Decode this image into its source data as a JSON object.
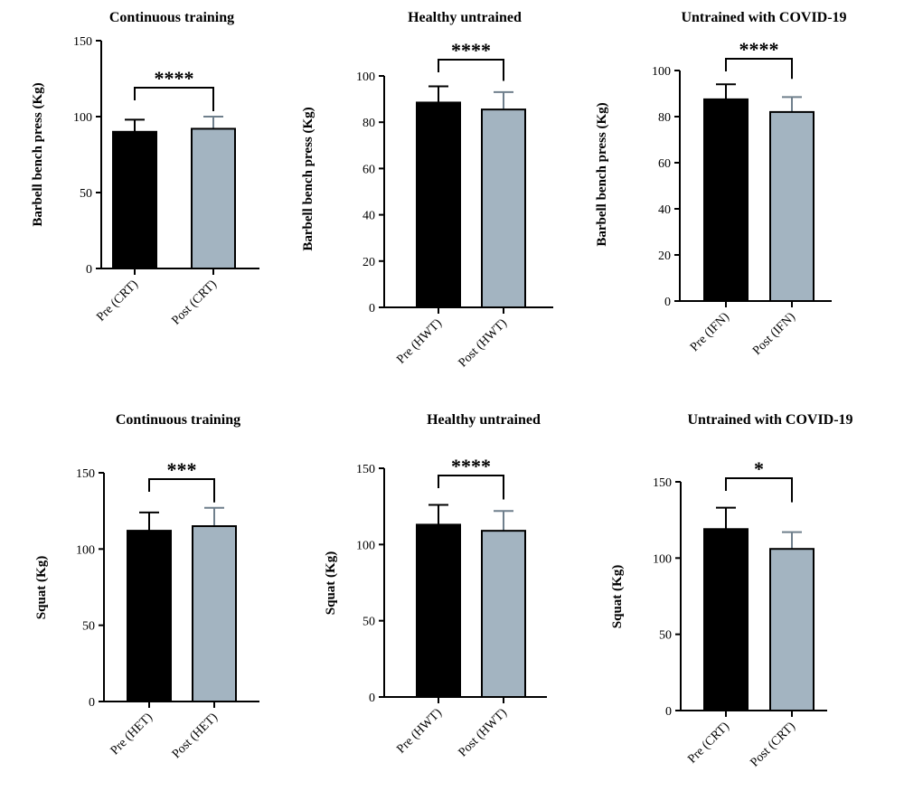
{
  "chart_data": [
    {
      "type": "bar",
      "title": "Continuous training",
      "ylabel": "Barbell bench press (Kg)",
      "categories": [
        "Pre (CRT)",
        "Post (CRT)"
      ],
      "values": [
        90,
        92
      ],
      "errors": [
        8,
        8
      ],
      "colors": [
        "#000000",
        "#a3b4c1"
      ],
      "ylim": [
        0,
        150
      ],
      "yticks": [
        0,
        50,
        100,
        150
      ],
      "significance": "****"
    },
    {
      "type": "bar",
      "title": "Healthy untrained",
      "ylabel": "Barbell bench press (Kg)",
      "categories": [
        "Pre (HWT)",
        "Post (HWT)"
      ],
      "values": [
        88.5,
        85.5
      ],
      "errors": [
        7,
        7.5
      ],
      "colors": [
        "#000000",
        "#a3b4c1"
      ],
      "ylim": [
        0,
        100
      ],
      "yticks": [
        0,
        20,
        40,
        60,
        80,
        100
      ],
      "significance": "****"
    },
    {
      "type": "bar",
      "title": "Untrained with COVID-19",
      "ylabel": "Barbell bench press (Kg)",
      "categories": [
        "Pre (IFN)",
        "Post (IFN)"
      ],
      "values": [
        87.5,
        82
      ],
      "errors": [
        6.5,
        6.5
      ],
      "colors": [
        "#000000",
        "#a3b4c1"
      ],
      "ylim": [
        0,
        100
      ],
      "yticks": [
        0,
        20,
        40,
        60,
        80,
        100
      ],
      "significance": "****"
    },
    {
      "type": "bar",
      "title": "Continuous training",
      "ylabel": "Squat (Kg)",
      "categories": [
        "Pre (HET)",
        "Post (HET)"
      ],
      "values": [
        112,
        115
      ],
      "errors": [
        12,
        12
      ],
      "colors": [
        "#000000",
        "#a3b4c1"
      ],
      "ylim": [
        0,
        150
      ],
      "yticks": [
        0,
        50,
        100,
        150
      ],
      "significance": "***"
    },
    {
      "type": "bar",
      "title": "Healthy untrained",
      "ylabel": "Squat (Kg)",
      "categories": [
        "Pre (HWT)",
        "Post (HWT)"
      ],
      "values": [
        113,
        109
      ],
      "errors": [
        13,
        13
      ],
      "colors": [
        "#000000",
        "#a3b4c1"
      ],
      "ylim": [
        0,
        150
      ],
      "yticks": [
        0,
        50,
        100,
        150
      ],
      "significance": "****"
    },
    {
      "type": "bar",
      "title": "Untrained with COVID-19",
      "ylabel": "Squat (Kg)",
      "categories": [
        "Pre (CRT)",
        "Post (CRT)"
      ],
      "values": [
        119,
        106
      ],
      "errors": [
        14,
        11
      ],
      "colors": [
        "#000000",
        "#a3b4c1"
      ],
      "ylim": [
        0,
        150
      ],
      "yticks": [
        0,
        50,
        100,
        150
      ],
      "significance": "*"
    }
  ]
}
